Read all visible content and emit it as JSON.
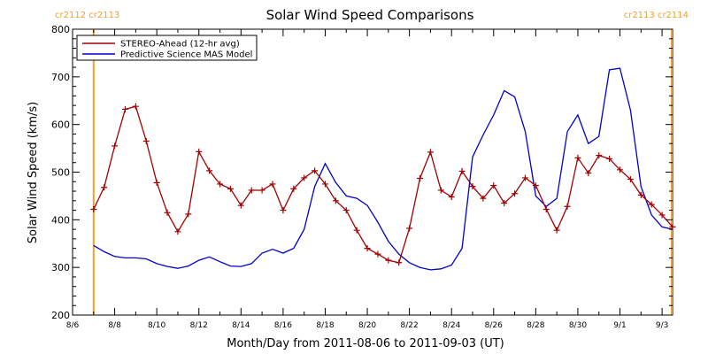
{
  "chart_data": {
    "type": "line",
    "title": "Solar Wind Speed Comparisons",
    "xlabel": "Month/Day from 2011-08-06 to 2011-09-03 (UT)",
    "ylabel": "Solar Wind Speed (km/s)",
    "xlim": [
      "2011-08-06",
      "2011-09-03 12:00"
    ],
    "ylim": [
      200,
      800
    ],
    "yticks": [
      200,
      300,
      400,
      500,
      600,
      700,
      800
    ],
    "xtick_labels": [
      "8/6",
      "8/8",
      "8/10",
      "8/12",
      "8/14",
      "8/16",
      "8/18",
      "8/20",
      "8/22",
      "8/24",
      "8/26",
      "8/28",
      "8/30",
      "9/1",
      "9/3"
    ],
    "xtick_dates": [
      "2011-08-06",
      "2011-08-08",
      "2011-08-10",
      "2011-08-12",
      "2011-08-14",
      "2011-08-16",
      "2011-08-18",
      "2011-08-20",
      "2011-08-22",
      "2011-08-24",
      "2011-08-26",
      "2011-08-28",
      "2011-08-30",
      "2011-09-01",
      "2011-09-03"
    ],
    "grid": false,
    "legend_position": "top-left",
    "series": [
      {
        "name": "STEREO-Ahead (12-hr avg)",
        "color": "#a00000",
        "marker": "plus",
        "points": [
          [
            "2011-08-07 00:00",
            422
          ],
          [
            "2011-08-07 12:00",
            468
          ],
          [
            "2011-08-08 00:00",
            555
          ],
          [
            "2011-08-08 12:00",
            632
          ],
          [
            "2011-08-09 00:00",
            638
          ],
          [
            "2011-08-09 12:00",
            565
          ],
          [
            "2011-08-10 00:00",
            478
          ],
          [
            "2011-08-10 12:00",
            415
          ],
          [
            "2011-08-11 00:00",
            375
          ],
          [
            "2011-08-11 12:00",
            412
          ],
          [
            "2011-08-12 00:00",
            543
          ],
          [
            "2011-08-12 12:00",
            503
          ],
          [
            "2011-08-13 00:00",
            475
          ],
          [
            "2011-08-13 12:00",
            465
          ],
          [
            "2011-08-14 00:00",
            430
          ],
          [
            "2011-08-14 12:00",
            462
          ],
          [
            "2011-08-15 00:00",
            462
          ],
          [
            "2011-08-15 12:00",
            475
          ],
          [
            "2011-08-16 00:00",
            420
          ],
          [
            "2011-08-16 12:00",
            465
          ],
          [
            "2011-08-17 00:00",
            488
          ],
          [
            "2011-08-17 12:00",
            503
          ],
          [
            "2011-08-18 00:00",
            475
          ],
          [
            "2011-08-18 12:00",
            440
          ],
          [
            "2011-08-19 00:00",
            420
          ],
          [
            "2011-08-19 12:00",
            378
          ],
          [
            "2011-08-20 00:00",
            340
          ],
          [
            "2011-08-20 12:00",
            328
          ],
          [
            "2011-08-21 00:00",
            315
          ],
          [
            "2011-08-21 12:00",
            310
          ],
          [
            "2011-08-22 00:00",
            382
          ],
          [
            "2011-08-22 12:00",
            487
          ],
          [
            "2011-08-23 00:00",
            542
          ],
          [
            "2011-08-23 12:00",
            462
          ],
          [
            "2011-08-24 00:00",
            448
          ],
          [
            "2011-08-24 12:00",
            502
          ],
          [
            "2011-08-25 00:00",
            470
          ],
          [
            "2011-08-25 12:00",
            445
          ],
          [
            "2011-08-26 00:00",
            472
          ],
          [
            "2011-08-26 12:00",
            435
          ],
          [
            "2011-08-27 00:00",
            455
          ],
          [
            "2011-08-27 12:00",
            488
          ],
          [
            "2011-08-28 00:00",
            472
          ],
          [
            "2011-08-28 12:00",
            422
          ],
          [
            "2011-08-29 00:00",
            378
          ],
          [
            "2011-08-29 12:00",
            428
          ],
          [
            "2011-08-30 00:00",
            530
          ],
          [
            "2011-08-30 12:00",
            498
          ],
          [
            "2011-08-31 00:00",
            535
          ],
          [
            "2011-08-31 12:00",
            528
          ],
          [
            "2011-09-01 00:00",
            505
          ],
          [
            "2011-09-01 12:00",
            485
          ],
          [
            "2011-09-02 00:00",
            452
          ],
          [
            "2011-09-02 12:00",
            432
          ],
          [
            "2011-09-03 00:00",
            410
          ],
          [
            "2011-09-03 12:00",
            385
          ]
        ]
      },
      {
        "name": "Predictive Science MAS Model",
        "color": "#0000cc",
        "marker": "none",
        "points": [
          [
            "2011-08-07 00:00",
            346
          ],
          [
            "2011-08-07 12:00",
            333
          ],
          [
            "2011-08-08 00:00",
            323
          ],
          [
            "2011-08-08 12:00",
            320
          ],
          [
            "2011-08-09 00:00",
            320
          ],
          [
            "2011-08-09 12:00",
            318
          ],
          [
            "2011-08-10 00:00",
            308
          ],
          [
            "2011-08-10 12:00",
            302
          ],
          [
            "2011-08-11 00:00",
            298
          ],
          [
            "2011-08-11 12:00",
            303
          ],
          [
            "2011-08-12 00:00",
            315
          ],
          [
            "2011-08-12 12:00",
            322
          ],
          [
            "2011-08-13 00:00",
            312
          ],
          [
            "2011-08-13 12:00",
            303
          ],
          [
            "2011-08-14 00:00",
            302
          ],
          [
            "2011-08-14 12:00",
            308
          ],
          [
            "2011-08-15 00:00",
            330
          ],
          [
            "2011-08-15 12:00",
            338
          ],
          [
            "2011-08-16 00:00",
            330
          ],
          [
            "2011-08-16 12:00",
            340
          ],
          [
            "2011-08-17 00:00",
            380
          ],
          [
            "2011-08-17 12:00",
            470
          ],
          [
            "2011-08-18 00:00",
            518
          ],
          [
            "2011-08-18 12:00",
            478
          ],
          [
            "2011-08-19 00:00",
            450
          ],
          [
            "2011-08-19 12:00",
            445
          ],
          [
            "2011-08-20 00:00",
            430
          ],
          [
            "2011-08-20 12:00",
            395
          ],
          [
            "2011-08-21 00:00",
            355
          ],
          [
            "2011-08-21 12:00",
            328
          ],
          [
            "2011-08-22 00:00",
            310
          ],
          [
            "2011-08-22 12:00",
            300
          ],
          [
            "2011-08-23 00:00",
            295
          ],
          [
            "2011-08-23 12:00",
            297
          ],
          [
            "2011-08-24 00:00",
            305
          ],
          [
            "2011-08-24 12:00",
            340
          ],
          [
            "2011-08-25 00:00",
            532
          ],
          [
            "2011-08-25 12:00",
            578
          ],
          [
            "2011-08-26 00:00",
            620
          ],
          [
            "2011-08-26 12:00",
            671
          ],
          [
            "2011-08-27 00:00",
            658
          ],
          [
            "2011-08-27 12:00",
            585
          ],
          [
            "2011-08-28 00:00",
            450
          ],
          [
            "2011-08-28 12:00",
            428
          ],
          [
            "2011-08-29 00:00",
            445
          ],
          [
            "2011-08-29 12:00",
            585
          ],
          [
            "2011-08-30 00:00",
            620
          ],
          [
            "2011-08-30 12:00",
            560
          ],
          [
            "2011-08-31 00:00",
            575
          ],
          [
            "2011-08-31 12:00",
            715
          ],
          [
            "2011-09-01 00:00",
            718
          ],
          [
            "2011-09-01 12:00",
            630
          ],
          [
            "2011-09-02 00:00",
            470
          ],
          [
            "2011-09-02 12:00",
            410
          ],
          [
            "2011-09-03 00:00",
            385
          ],
          [
            "2011-09-03 12:00",
            380
          ]
        ]
      }
    ],
    "carrington_markers": [
      {
        "date": "2011-08-07 00:00",
        "label": "cr2112 cr2113",
        "side": "left"
      },
      {
        "date": "2011-09-03 11:00",
        "label": "cr2113 cr2114",
        "side": "right"
      }
    ],
    "marker_color": "#f0a030"
  }
}
